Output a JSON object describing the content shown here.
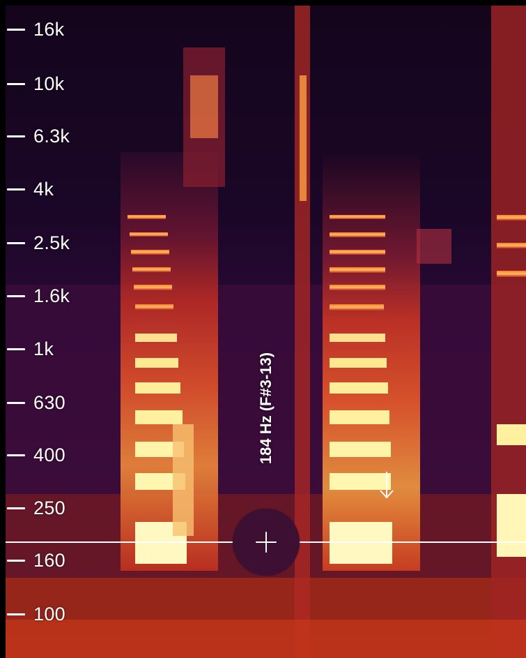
{
  "spectrogram": {
    "frequency_ticks": [
      {
        "label": "16k"
      },
      {
        "label": "10k"
      },
      {
        "label": "6.3k"
      },
      {
        "label": "4k"
      },
      {
        "label": "2.5k"
      },
      {
        "label": "1.6k"
      },
      {
        "label": "1k"
      },
      {
        "label": "630"
      },
      {
        "label": "400"
      },
      {
        "label": "250"
      },
      {
        "label": "160"
      },
      {
        "label": "100"
      }
    ],
    "colors": {
      "background_dark": "#14051c",
      "low_energy": "#4a1040",
      "mid_energy": "#c0281e",
      "high_energy": "#ff8a3a",
      "peak_energy": "#fff6b0",
      "button": "#3d0f33",
      "line": "#ffffff"
    }
  },
  "pitch": {
    "readout": "184 Hz (F#3-13)",
    "button_icon": "plus-icon",
    "indicator_icon": "down-arrow-icon"
  }
}
